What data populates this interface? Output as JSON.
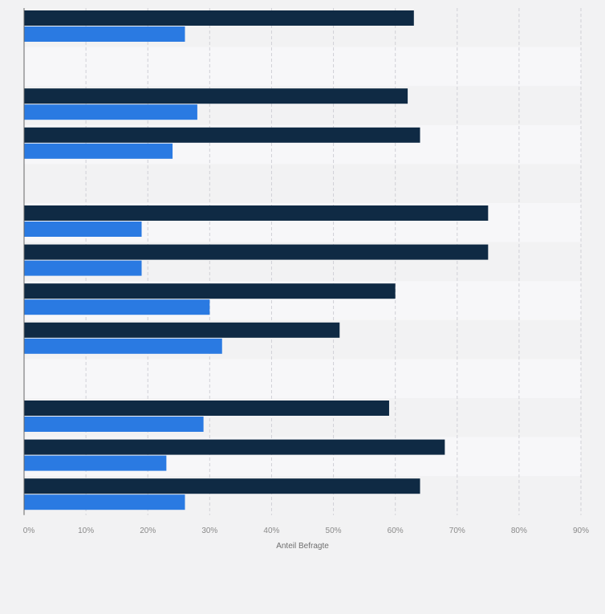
{
  "chart_data": {
    "type": "bar",
    "orientation": "horizontal",
    "xlabel": "Anteil Befragte",
    "xlim": [
      0,
      90
    ],
    "xticks": [
      0,
      10,
      20,
      30,
      40,
      50,
      60,
      70,
      80,
      90
    ],
    "xtick_labels": [
      "0%",
      "10%",
      "20%",
      "30%",
      "40%",
      "50%",
      "60%",
      "70%",
      "80%",
      "90%"
    ],
    "grid": true,
    "rows": 13,
    "categories": [
      "",
      "",
      "",
      "",
      "",
      "",
      "",
      "",
      "",
      "",
      "",
      "",
      ""
    ],
    "series": [
      {
        "color": "#0f2a44",
        "values": [
          63,
          null,
          62,
          64,
          null,
          75,
          75,
          60,
          51,
          null,
          59,
          68,
          64
        ]
      },
      {
        "color": "#2a7ae2",
        "values": [
          26,
          null,
          28,
          24,
          null,
          19,
          19,
          30,
          32,
          null,
          29,
          23,
          26
        ]
      }
    ]
  },
  "colors": {
    "background": "#f2f2f3",
    "band_light": "#f7f7f9",
    "band_dark": "#f2f2f3",
    "grid": "#d0d0d6",
    "axis": "#666666",
    "tick_text": "#8a8a8a"
  }
}
